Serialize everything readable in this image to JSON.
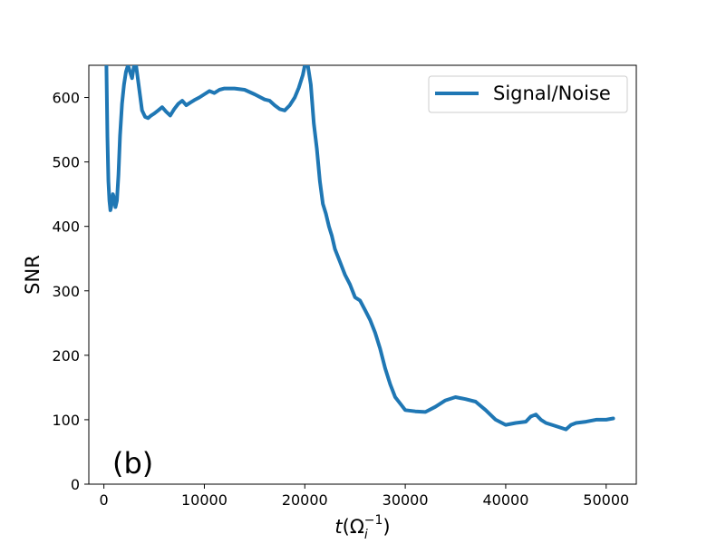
{
  "chart_data": {
    "type": "line",
    "panel_label": "(b)",
    "xlabel": {
      "base": "t",
      "open": "(",
      "symbol": "Ω",
      "subscript": "i",
      "superscript": "−1",
      "close": ")"
    },
    "ylabel": "SNR",
    "xlim": [
      -1500,
      53000
    ],
    "ylim": [
      0,
      650
    ],
    "xticks": [
      0,
      10000,
      20000,
      30000,
      40000,
      50000
    ],
    "yticks": [
      0,
      100,
      200,
      300,
      400,
      500,
      600
    ],
    "xtick_labels": [
      "0",
      "10000",
      "20000",
      "30000",
      "40000",
      "50000"
    ],
    "ytick_labels": [
      "0",
      "100",
      "200",
      "300",
      "400",
      "500",
      "600"
    ],
    "grid": false,
    "legend_position": "top-right",
    "color": "#1f77b4",
    "series": [
      {
        "name": "Signal/Noise",
        "x": [
          250,
          350,
          450,
          550,
          650,
          750,
          900,
          1000,
          1150,
          1300,
          1450,
          1600,
          1800,
          2000,
          2200,
          2400,
          2600,
          2800,
          3000,
          3200,
          3500,
          3800,
          4100,
          4400,
          4700,
          5000,
          5400,
          5800,
          6200,
          6600,
          7000,
          7400,
          7800,
          8200,
          8600,
          9000,
          9500,
          10000,
          10500,
          11000,
          11500,
          12000,
          13000,
          14000,
          15000,
          16000,
          16500,
          17000,
          17500,
          18000,
          18500,
          19000,
          19400,
          19800,
          20000,
          20300,
          20600,
          20900,
          21200,
          21500,
          21800,
          22100,
          22400,
          22700,
          23000,
          23500,
          24000,
          24500,
          25000,
          25500,
          26000,
          26500,
          27000,
          27500,
          28000,
          28500,
          29000,
          29500,
          30000,
          31000,
          32000,
          33000,
          34000,
          35000,
          36000,
          37000,
          38000,
          39000,
          40000,
          41000,
          42000,
          42500,
          43000,
          43500,
          44000,
          45000,
          46000,
          46500,
          47000,
          48000,
          49000,
          50000,
          50700
        ],
        "y": [
          650,
          540,
          470,
          440,
          425,
          432,
          450,
          445,
          430,
          440,
          480,
          540,
          590,
          620,
          640,
          650,
          640,
          630,
          650,
          650,
          615,
          580,
          570,
          568,
          572,
          575,
          580,
          585,
          578,
          572,
          582,
          590,
          595,
          588,
          592,
          596,
          600,
          605,
          610,
          607,
          612,
          614,
          614,
          612,
          605,
          597,
          595,
          588,
          582,
          580,
          588,
          600,
          615,
          635,
          650,
          650,
          620,
          560,
          520,
          470,
          435,
          420,
          400,
          385,
          365,
          345,
          325,
          310,
          290,
          285,
          270,
          255,
          235,
          210,
          180,
          155,
          135,
          125,
          115,
          113,
          112,
          120,
          130,
          135,
          132,
          128,
          115,
          100,
          92,
          95,
          97,
          105,
          108,
          100,
          95,
          90,
          85,
          92,
          95,
          97,
          100,
          100,
          102
        ]
      }
    ]
  }
}
